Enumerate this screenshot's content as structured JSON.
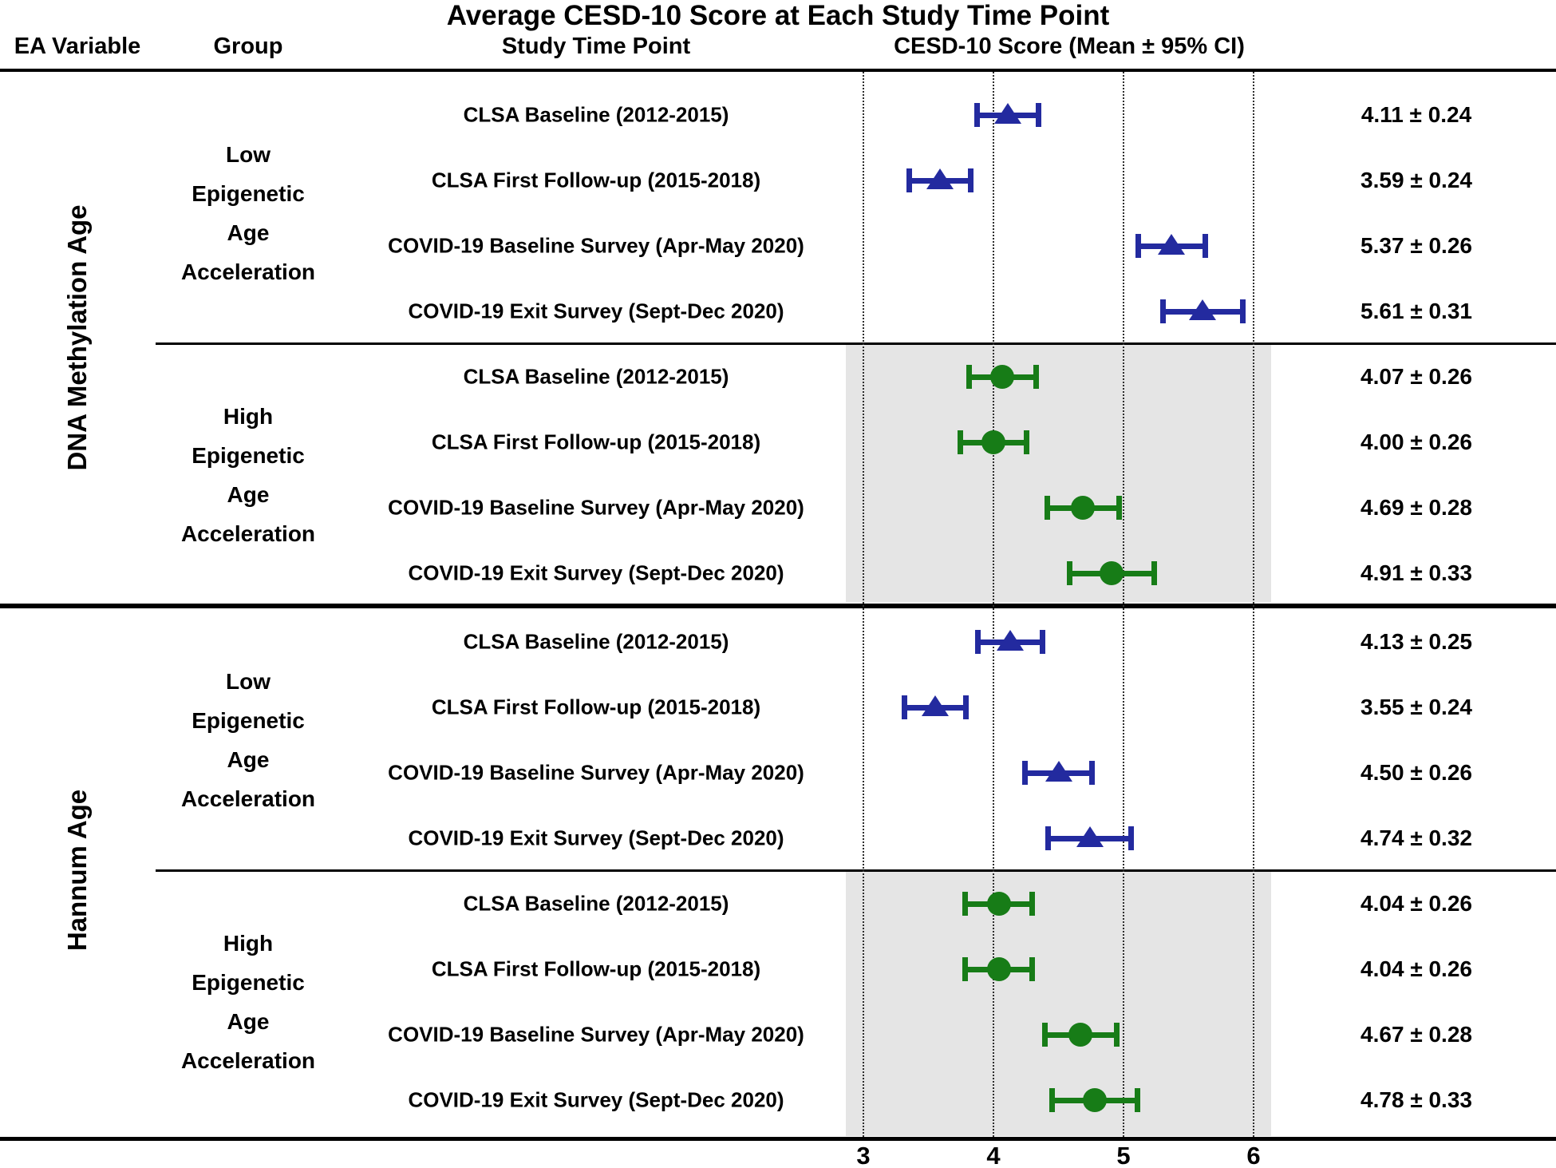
{
  "title": "Average CESD-10 Score at Each Study Time Point",
  "headers": {
    "ea_variable": "EA Variable",
    "group": "Group",
    "time_point": "Study Time Point",
    "score": "CESD-10 Score (Mean ± 95% CI)"
  },
  "colors": {
    "low_marker": "#232a9f",
    "high_marker": "#177c17",
    "shaded_band": "#e5e5e5",
    "text": "#000000"
  },
  "chart_data": {
    "type": "scatter",
    "subtype": "forest-plot",
    "title": "Average CESD-10 Score at Each Study Time Point",
    "xlabel": "",
    "x_ticks": [
      3,
      4,
      5,
      6
    ],
    "xlim": [
      2.5,
      6.3
    ],
    "grid": "dotted-vertical",
    "legend_position": "none",
    "sections": [
      {
        "ea_variable": "DNA Methylation Age",
        "groups": [
          {
            "name": "Low Epigenetic Age Acceleration",
            "label_lines": [
              "Low",
              "Epigenetic",
              "Age",
              "Acceleration"
            ],
            "marker": "triangle",
            "color_key": "low_marker",
            "shaded": false,
            "rows": [
              {
                "time_point": "CLSA Baseline (2012-2015)",
                "mean": 4.11,
                "ci": 0.24,
                "label": "4.11 ± 0.24"
              },
              {
                "time_point": "CLSA First Follow-up (2015-2018)",
                "mean": 3.59,
                "ci": 0.24,
                "label": "3.59 ± 0.24"
              },
              {
                "time_point": "COVID-19 Baseline Survey (Apr-May 2020)",
                "mean": 5.37,
                "ci": 0.26,
                "label": "5.37 ± 0.26"
              },
              {
                "time_point": "COVID-19 Exit Survey (Sept-Dec 2020)",
                "mean": 5.61,
                "ci": 0.31,
                "label": "5.61 ± 0.31"
              }
            ]
          },
          {
            "name": "High Epigenetic Age Acceleration",
            "label_lines": [
              "High",
              "Epigenetic",
              "Age",
              "Acceleration"
            ],
            "marker": "circle",
            "color_key": "high_marker",
            "shaded": true,
            "rows": [
              {
                "time_point": "CLSA Baseline (2012-2015)",
                "mean": 4.07,
                "ci": 0.26,
                "label": "4.07 ± 0.26"
              },
              {
                "time_point": "CLSA First Follow-up (2015-2018)",
                "mean": 4.0,
                "ci": 0.26,
                "label": "4.00 ± 0.26"
              },
              {
                "time_point": "COVID-19 Baseline Survey (Apr-May 2020)",
                "mean": 4.69,
                "ci": 0.28,
                "label": "4.69 ± 0.28"
              },
              {
                "time_point": "COVID-19 Exit Survey (Sept-Dec 2020)",
                "mean": 4.91,
                "ci": 0.33,
                "label": "4.91 ± 0.33"
              }
            ]
          }
        ]
      },
      {
        "ea_variable": "Hannum Age",
        "groups": [
          {
            "name": "Low Epigenetic Age Acceleration",
            "label_lines": [
              "Low",
              "Epigenetic",
              "Age",
              "Acceleration"
            ],
            "marker": "triangle",
            "color_key": "low_marker",
            "shaded": false,
            "rows": [
              {
                "time_point": "CLSA Baseline (2012-2015)",
                "mean": 4.13,
                "ci": 0.25,
                "label": "4.13 ± 0.25"
              },
              {
                "time_point": "CLSA First Follow-up (2015-2018)",
                "mean": 3.55,
                "ci": 0.24,
                "label": "3.55 ± 0.24"
              },
              {
                "time_point": "COVID-19 Baseline Survey (Apr-May 2020)",
                "mean": 4.5,
                "ci": 0.26,
                "label": "4.50 ± 0.26"
              },
              {
                "time_point": "COVID-19 Exit Survey (Sept-Dec 2020)",
                "mean": 4.74,
                "ci": 0.32,
                "label": "4.74 ± 0.32"
              }
            ]
          },
          {
            "name": "High Epigenetic Age Acceleration",
            "label_lines": [
              "High",
              "Epigenetic",
              "Age",
              "Acceleration"
            ],
            "marker": "circle",
            "color_key": "high_marker",
            "shaded": true,
            "rows": [
              {
                "time_point": "CLSA Baseline (2012-2015)",
                "mean": 4.04,
                "ci": 0.26,
                "label": "4.04 ± 0.26"
              },
              {
                "time_point": "CLSA First Follow-up (2015-2018)",
                "mean": 4.04,
                "ci": 0.26,
                "label": "4.04 ± 0.26"
              },
              {
                "time_point": "COVID-19 Baseline Survey (Apr-May 2020)",
                "mean": 4.67,
                "ci": 0.28,
                "label": "4.67 ± 0.28"
              },
              {
                "time_point": "COVID-19 Exit Survey (Sept-Dec 2020)",
                "mean": 4.78,
                "ci": 0.33,
                "label": "4.78 ± 0.33"
              }
            ]
          }
        ]
      }
    ]
  }
}
